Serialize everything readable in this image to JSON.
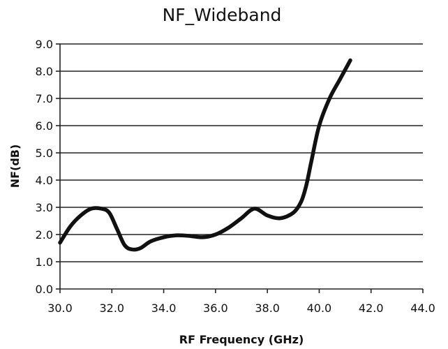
{
  "chart_data": {
    "type": "line",
    "title": "NF_Wideband",
    "xlabel": "RF Frequency (GHz)",
    "ylabel": "NF(dB)",
    "xlim": [
      30.0,
      44.0
    ],
    "ylim": [
      0.0,
      9.0
    ],
    "x_ticks": [
      "30.0",
      "32.0",
      "34.0",
      "36.0",
      "38.0",
      "40.0",
      "42.0",
      "44.0"
    ],
    "y_ticks": [
      "0.0",
      "1.0",
      "2.0",
      "3.0",
      "4.0",
      "5.0",
      "6.0",
      "7.0",
      "8.0",
      "9.0"
    ],
    "grid": "horizontal",
    "legend": "none",
    "series": [
      {
        "color": "#111111",
        "x": [
          30.0,
          30.4,
          30.8,
          31.2,
          31.6,
          31.9,
          32.2,
          32.5,
          32.8,
          33.1,
          33.5,
          34.0,
          34.5,
          35.0,
          35.5,
          36.0,
          36.5,
          37.0,
          37.5,
          38.0,
          38.5,
          39.0,
          39.3,
          39.5,
          39.7,
          40.0,
          40.4,
          40.8,
          41.2
        ],
        "y": [
          1.7,
          2.3,
          2.7,
          2.95,
          2.95,
          2.8,
          2.2,
          1.6,
          1.45,
          1.5,
          1.75,
          1.9,
          1.97,
          1.95,
          1.9,
          2.0,
          2.25,
          2.6,
          2.95,
          2.7,
          2.6,
          2.8,
          3.2,
          3.8,
          4.7,
          6.0,
          7.0,
          7.7,
          8.4
        ]
      }
    ]
  }
}
